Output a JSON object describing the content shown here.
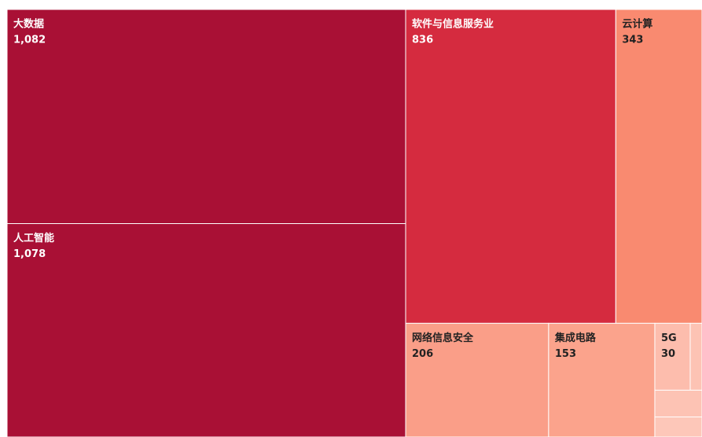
{
  "chart_data": {
    "type": "treemap",
    "categories": [
      "大数据",
      "人工智能",
      "软件与信息服务业",
      "云计算",
      "网络信息安全",
      "集成电路",
      "5G",
      null,
      null,
      null
    ],
    "values": [
      1082,
      1078,
      836,
      343,
      206,
      153,
      30,
      16,
      12,
      10
    ],
    "value_labels": [
      "1,082",
      "1,078",
      "836",
      "343",
      "206",
      "153",
      "30",
      null,
      null,
      null
    ],
    "colors": [
      "#a91035",
      "#a91035",
      "#d52b3f",
      "#f98a70",
      "#fa9e88",
      "#fba38c",
      "#fdbdad",
      "#fdc3b4",
      "#fdc7b9",
      "#fdc3b4"
    ]
  }
}
